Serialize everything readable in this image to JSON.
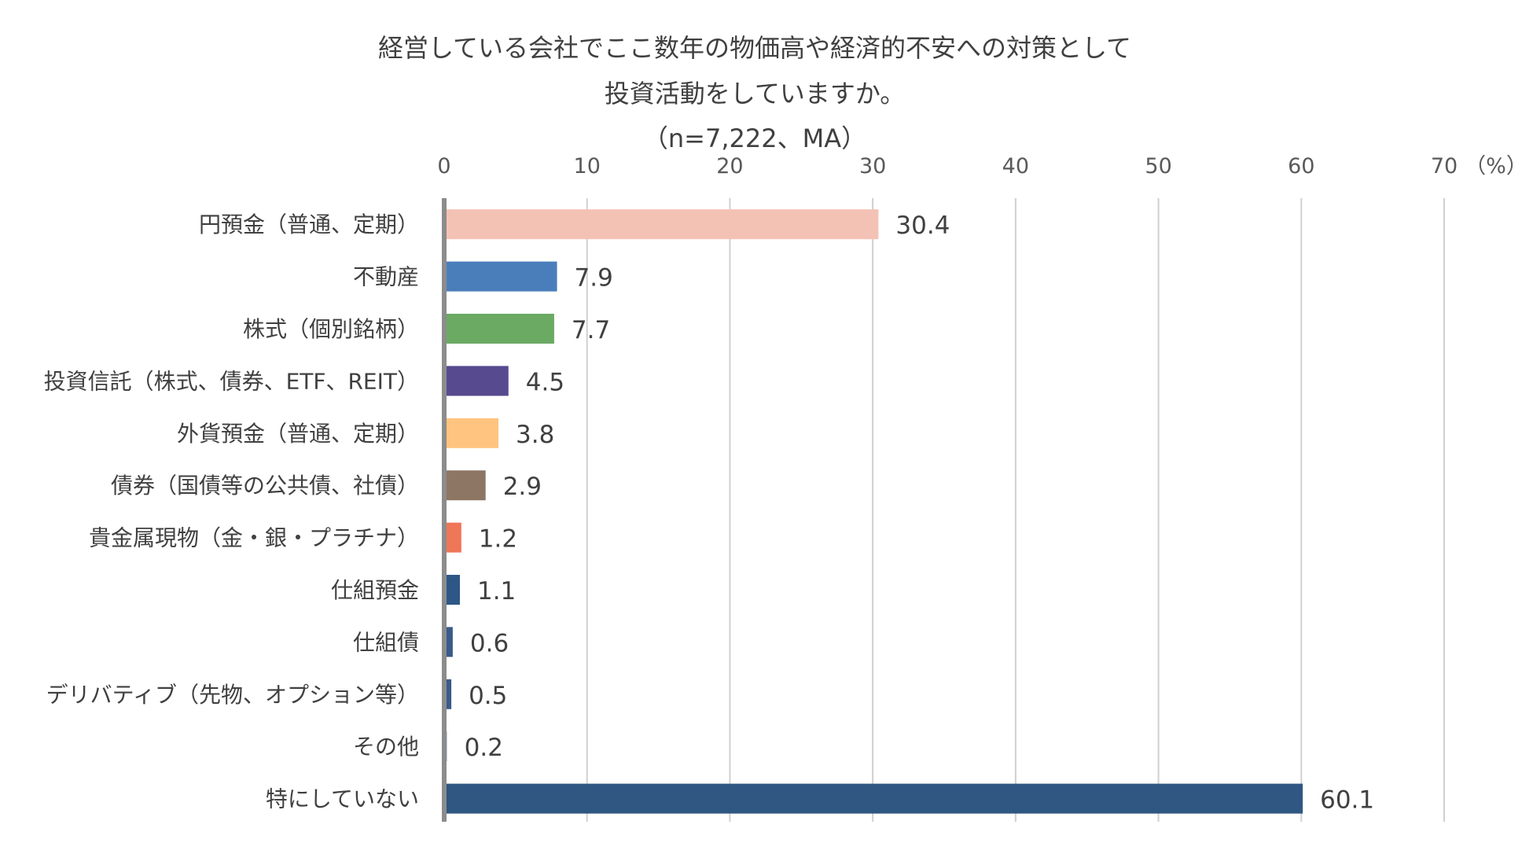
{
  "chart_data": {
    "type": "bar",
    "orientation": "horizontal",
    "title_lines": [
      "経営している会社でここ数年の物価高や経済的不安への対策として",
      "投資活動をしていますか。",
      "（n=7,222、MA）"
    ],
    "x_unit_label": "（%）",
    "xlim": [
      0,
      70
    ],
    "x_ticks": [
      0,
      10,
      20,
      30,
      40,
      50,
      60,
      70
    ],
    "grid": true,
    "legend": "none",
    "categories": [
      "円預金（普通、定期）",
      "不動産",
      "株式（個別銘柄）",
      "投資信託（株式、債券、ETF、REIT）",
      "外貨預金（普通、定期）",
      "債券（国債等の公共債、社債）",
      "貴金属現物（金・銀・プラチナ）",
      "仕組預金",
      "仕組債",
      "デリバティブ（先物、オプション等）",
      "その他",
      "特にしていない"
    ],
    "values": [
      30.4,
      7.9,
      7.7,
      4.5,
      3.8,
      2.9,
      1.2,
      1.1,
      0.6,
      0.5,
      0.2,
      60.1
    ],
    "value_labels": [
      "30.4",
      "7.9",
      "7.7",
      "4.5",
      "3.8",
      "2.9",
      "1.2",
      "1.1",
      "0.6",
      "0.5",
      "0.2",
      "60.1"
    ],
    "colors": [
      "#F4C2B5",
      "#4A7EBB",
      "#6AAA63",
      "#574A8F",
      "#FFC47F",
      "#8E7664",
      "#EF7656",
      "#2E5787",
      "#3A5A8A",
      "#3A5A8A",
      "#9FB3CC",
      "#2F5782"
    ],
    "gridline_color": "#D0D0D0",
    "axis_line_color": "#8C8C8C"
  }
}
